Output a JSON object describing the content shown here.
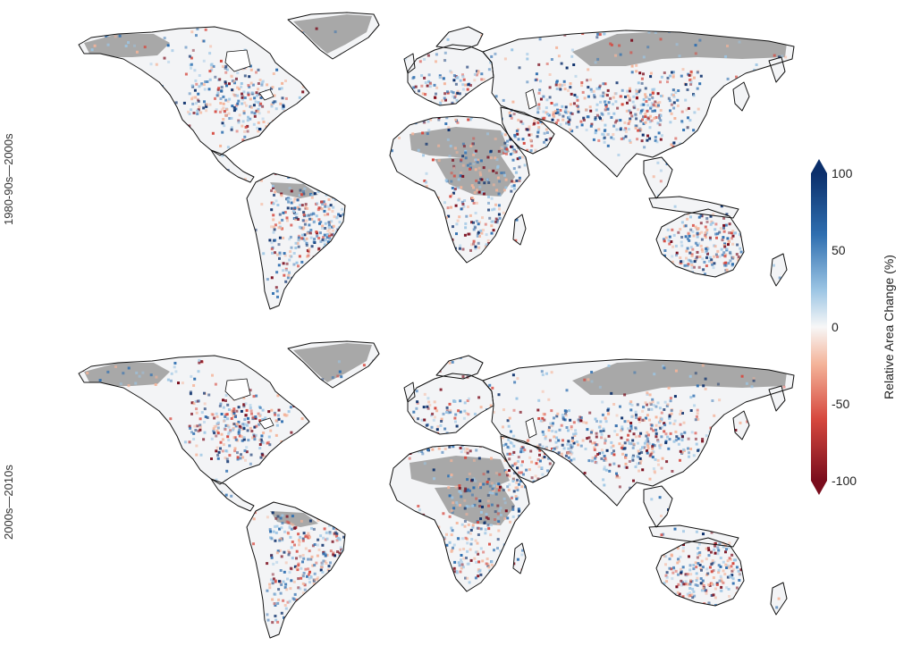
{
  "panels": [
    {
      "id": "top",
      "label": "1980-90s—2000s",
      "seed": 7
    },
    {
      "id": "bottom",
      "label": "2000s—2010s",
      "seed": 31
    }
  ],
  "legend": {
    "title": "Relative Area Change (%)",
    "ticks": [
      "100",
      "50",
      "0",
      "-50",
      "-100"
    ],
    "min": -100,
    "max": 100,
    "colors": {
      "max": "#0b2f6b",
      "high": "#2f6fb0",
      "mid_high": "#9cc5e4",
      "zero": "#f7f7f7",
      "mid_low": "#f4b49a",
      "low": "#d6483e",
      "min": "#7a0d1d"
    }
  },
  "map_colors": {
    "land": "#f3f4f6",
    "no_data": "#a8a8a8",
    "coast": "#111111",
    "ocean": "#ffffff"
  }
}
